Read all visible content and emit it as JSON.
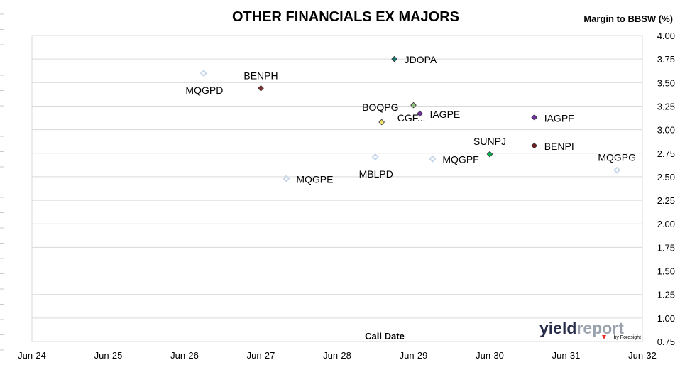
{
  "chart_data": {
    "type": "scatter",
    "title": "OTHER FINANCIALS EX MAJORS",
    "xlabel": "Call Date",
    "ylabel": "Margin to BBSW (%)",
    "x_ticks": [
      "Jun-24",
      "Jun-25",
      "Jun-26",
      "Jun-27",
      "Jun-28",
      "Jun-29",
      "Jun-30",
      "Jun-31",
      "Jun-32"
    ],
    "xlim": [
      "Jun-24",
      "Jun-32"
    ],
    "ylim": [
      0.75,
      4.0
    ],
    "y_ticks": [
      "4.00",
      "3.75",
      "3.50",
      "3.25",
      "3.00",
      "2.75",
      "2.50",
      "2.25",
      "2.00",
      "1.75",
      "1.50",
      "1.25",
      "1.00",
      "0.75"
    ],
    "grid": "horizontal",
    "legend": "none",
    "points": [
      {
        "label": "MQGPD",
        "x": "2026-09",
        "y": 3.6,
        "color": "#c5d5ea",
        "hollow": true,
        "label_pos": "below"
      },
      {
        "label": "BENPH",
        "x": "2027-06",
        "y": 3.44,
        "color": "#8b2e2e",
        "hollow": false,
        "label_pos": "above"
      },
      {
        "label": "MQGPE",
        "x": "2027-10",
        "y": 2.48,
        "color": "#c5d5ea",
        "hollow": true,
        "label_pos": "right"
      },
      {
        "label": "JDOPA",
        "x": "2029-03",
        "y": 3.75,
        "color": "#1a7a74",
        "hollow": false,
        "label_pos": "right"
      },
      {
        "label": "BOQPG",
        "x": "2029-06",
        "y": 3.26,
        "color": "#93c47d",
        "hollow": false,
        "label_pos": "left"
      },
      {
        "label": "IAGPE",
        "x": "2029-07",
        "y": 3.17,
        "color": "#7030a0",
        "hollow": false,
        "label_pos": "right"
      },
      {
        "label": "CGF...",
        "x": "2029-01",
        "y": 3.08,
        "color": "#f2e36b",
        "hollow": false,
        "label_pos": "right-up"
      },
      {
        "label": "MBLPD",
        "x": "2028-12",
        "y": 2.71,
        "color": "#c5d5ea",
        "hollow": true,
        "label_pos": "below"
      },
      {
        "label": "MQGPF",
        "x": "2029-09",
        "y": 2.69,
        "color": "#c5d5ea",
        "hollow": true,
        "label_pos": "right"
      },
      {
        "label": "SUNPJ",
        "x": "2030-06",
        "y": 2.74,
        "color": "#00b050",
        "hollow": false,
        "label_pos": "above"
      },
      {
        "label": "IAGPF",
        "x": "2031-01",
        "y": 3.13,
        "color": "#7030a0",
        "hollow": false,
        "label_pos": "right"
      },
      {
        "label": "BENPI",
        "x": "2031-01",
        "y": 2.83,
        "color": "#7b1a1a",
        "hollow": false,
        "label_pos": "right"
      },
      {
        "label": "MQGPG",
        "x": "2032-02",
        "y": 2.57,
        "color": "#c5d5ea",
        "hollow": true,
        "label_pos": "above"
      }
    ]
  },
  "logo": {
    "main_dark": "yield",
    "main_light": "report",
    "sub": "by Foresight"
  },
  "colors": {
    "gridline": "#d9d9d9",
    "plot_border": "#d9d9d9",
    "axis_text": "#000000",
    "logo_dark": "#262b4a",
    "logo_light": "#9aa3ad",
    "logo_accent": "#e8302a"
  }
}
